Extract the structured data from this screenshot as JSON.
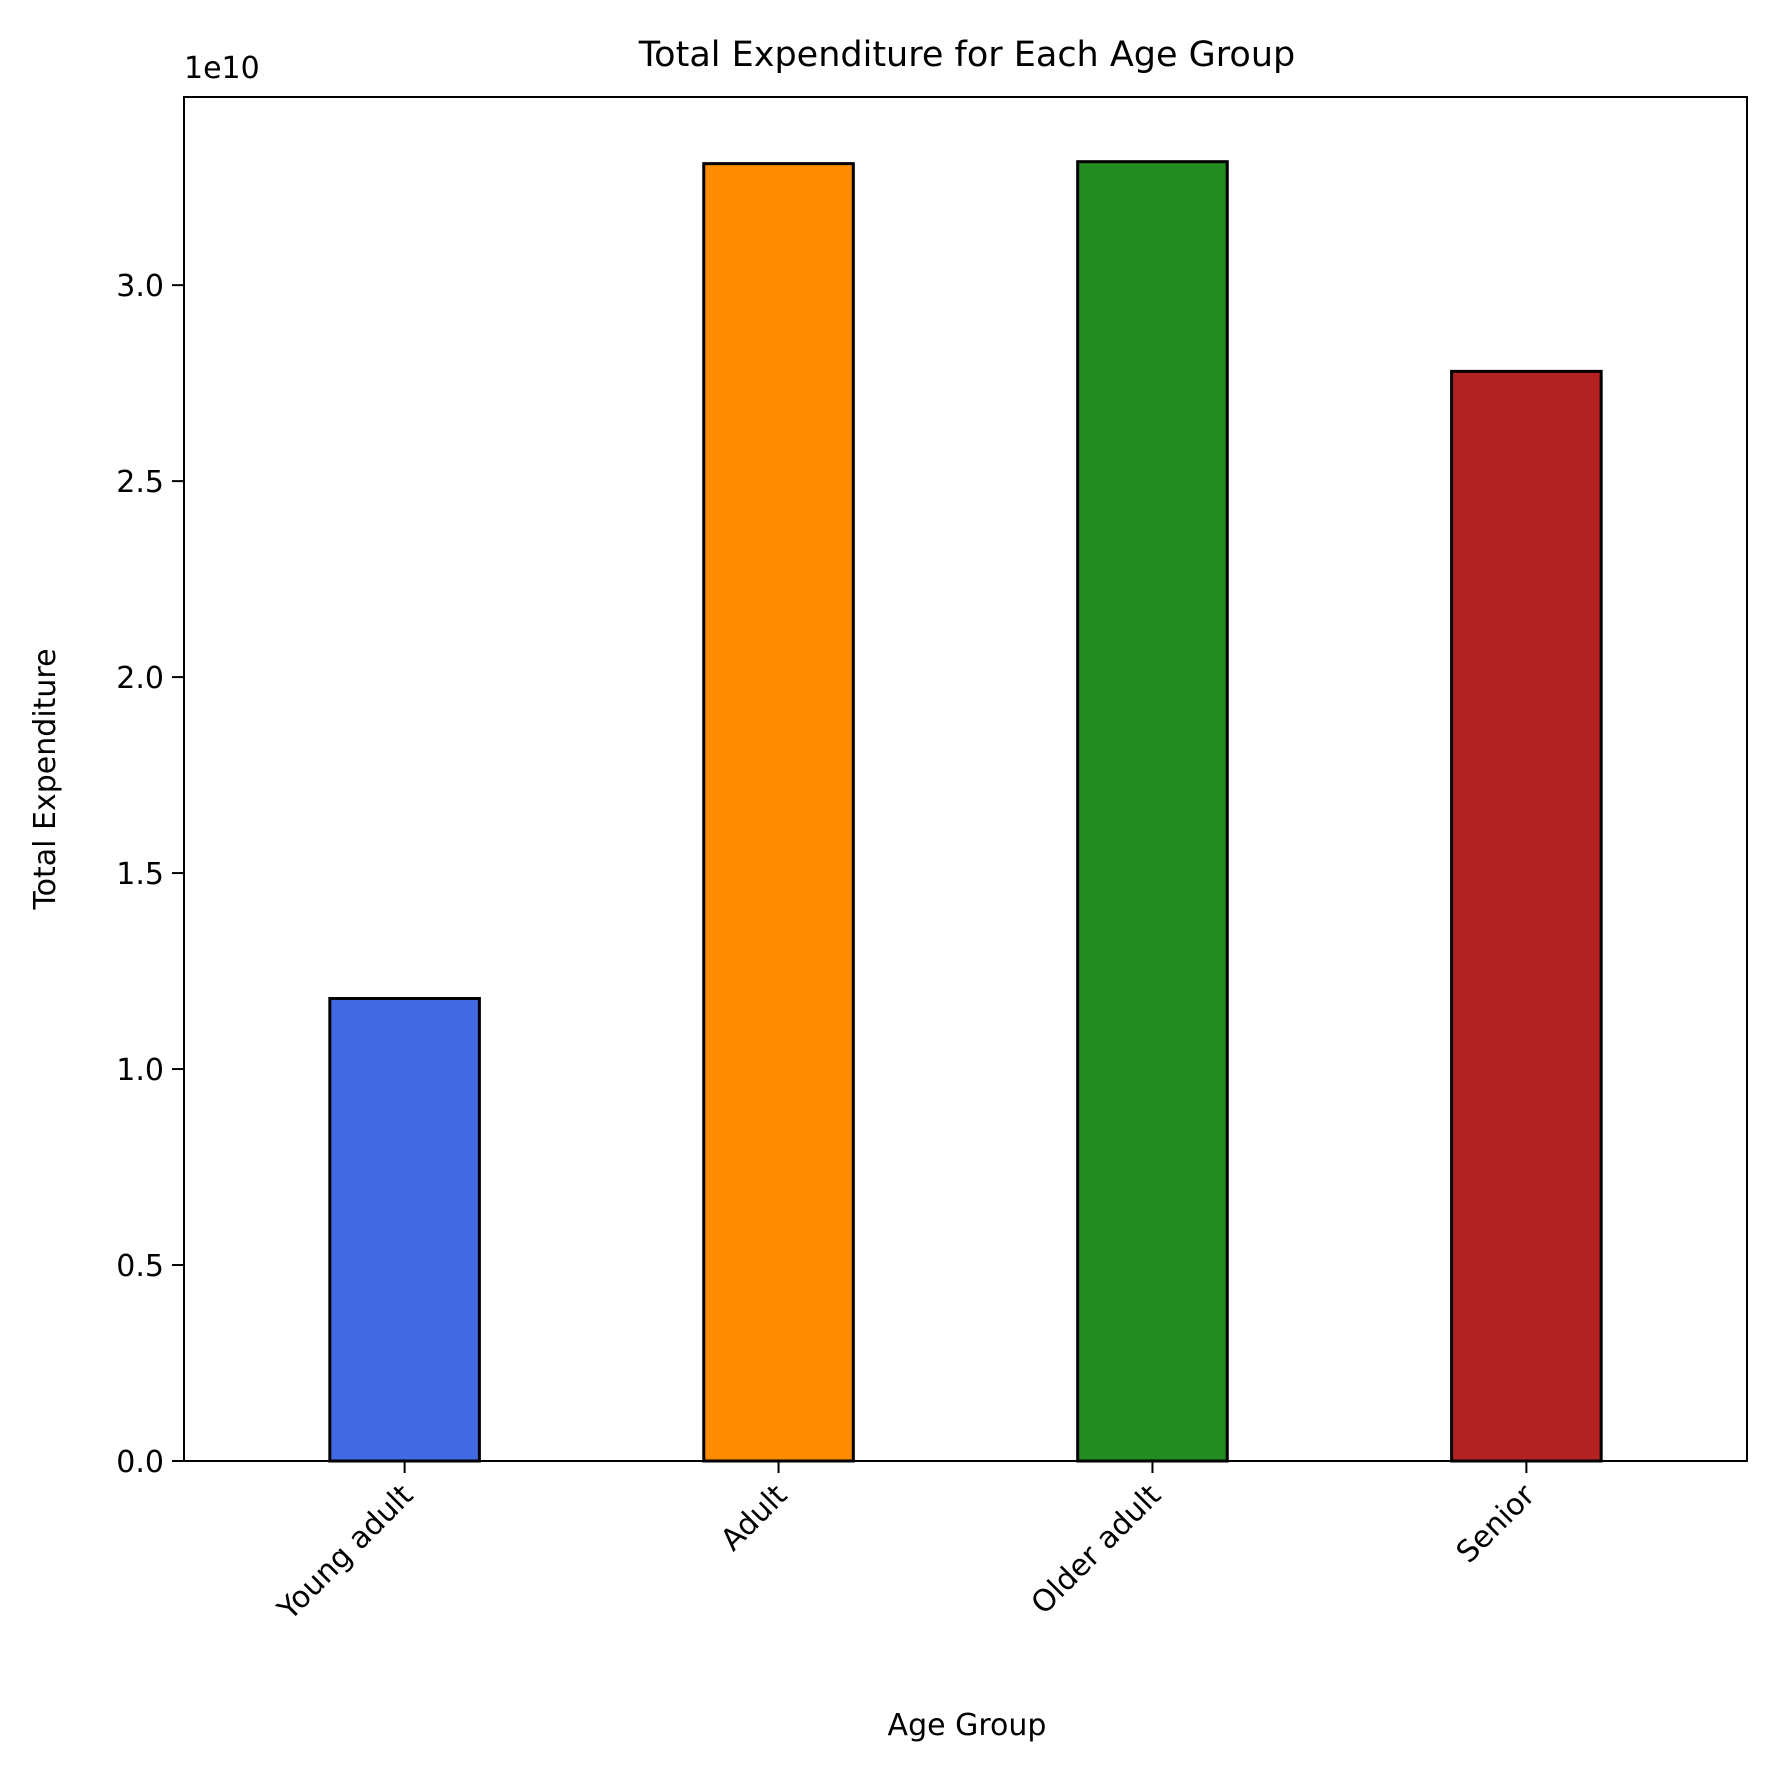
{
  "chart_data": {
    "type": "bar",
    "title": "Total Expenditure for Each Age Group",
    "xlabel": "Age Group",
    "ylabel": "Total Expenditure",
    "offset_label": "1e10",
    "categories": [
      "Young adult",
      "Adult",
      "Older adult",
      "Senior"
    ],
    "values": [
      11800000000,
      33100000000,
      33150000000,
      27800000000
    ],
    "colors": [
      "#4169E1",
      "#FF8C00",
      "#228B22",
      "#B22222"
    ],
    "edge_color": "#000000",
    "ylim": [
      0,
      34800000000
    ],
    "yticks": [
      0,
      5000000000,
      10000000000,
      15000000000,
      20000000000,
      25000000000,
      30000000000
    ],
    "ytick_labels": [
      "0.0",
      "0.5",
      "1.0",
      "1.5",
      "2.0",
      "2.5",
      "3.0"
    ],
    "grid": false,
    "legend": "none"
  }
}
